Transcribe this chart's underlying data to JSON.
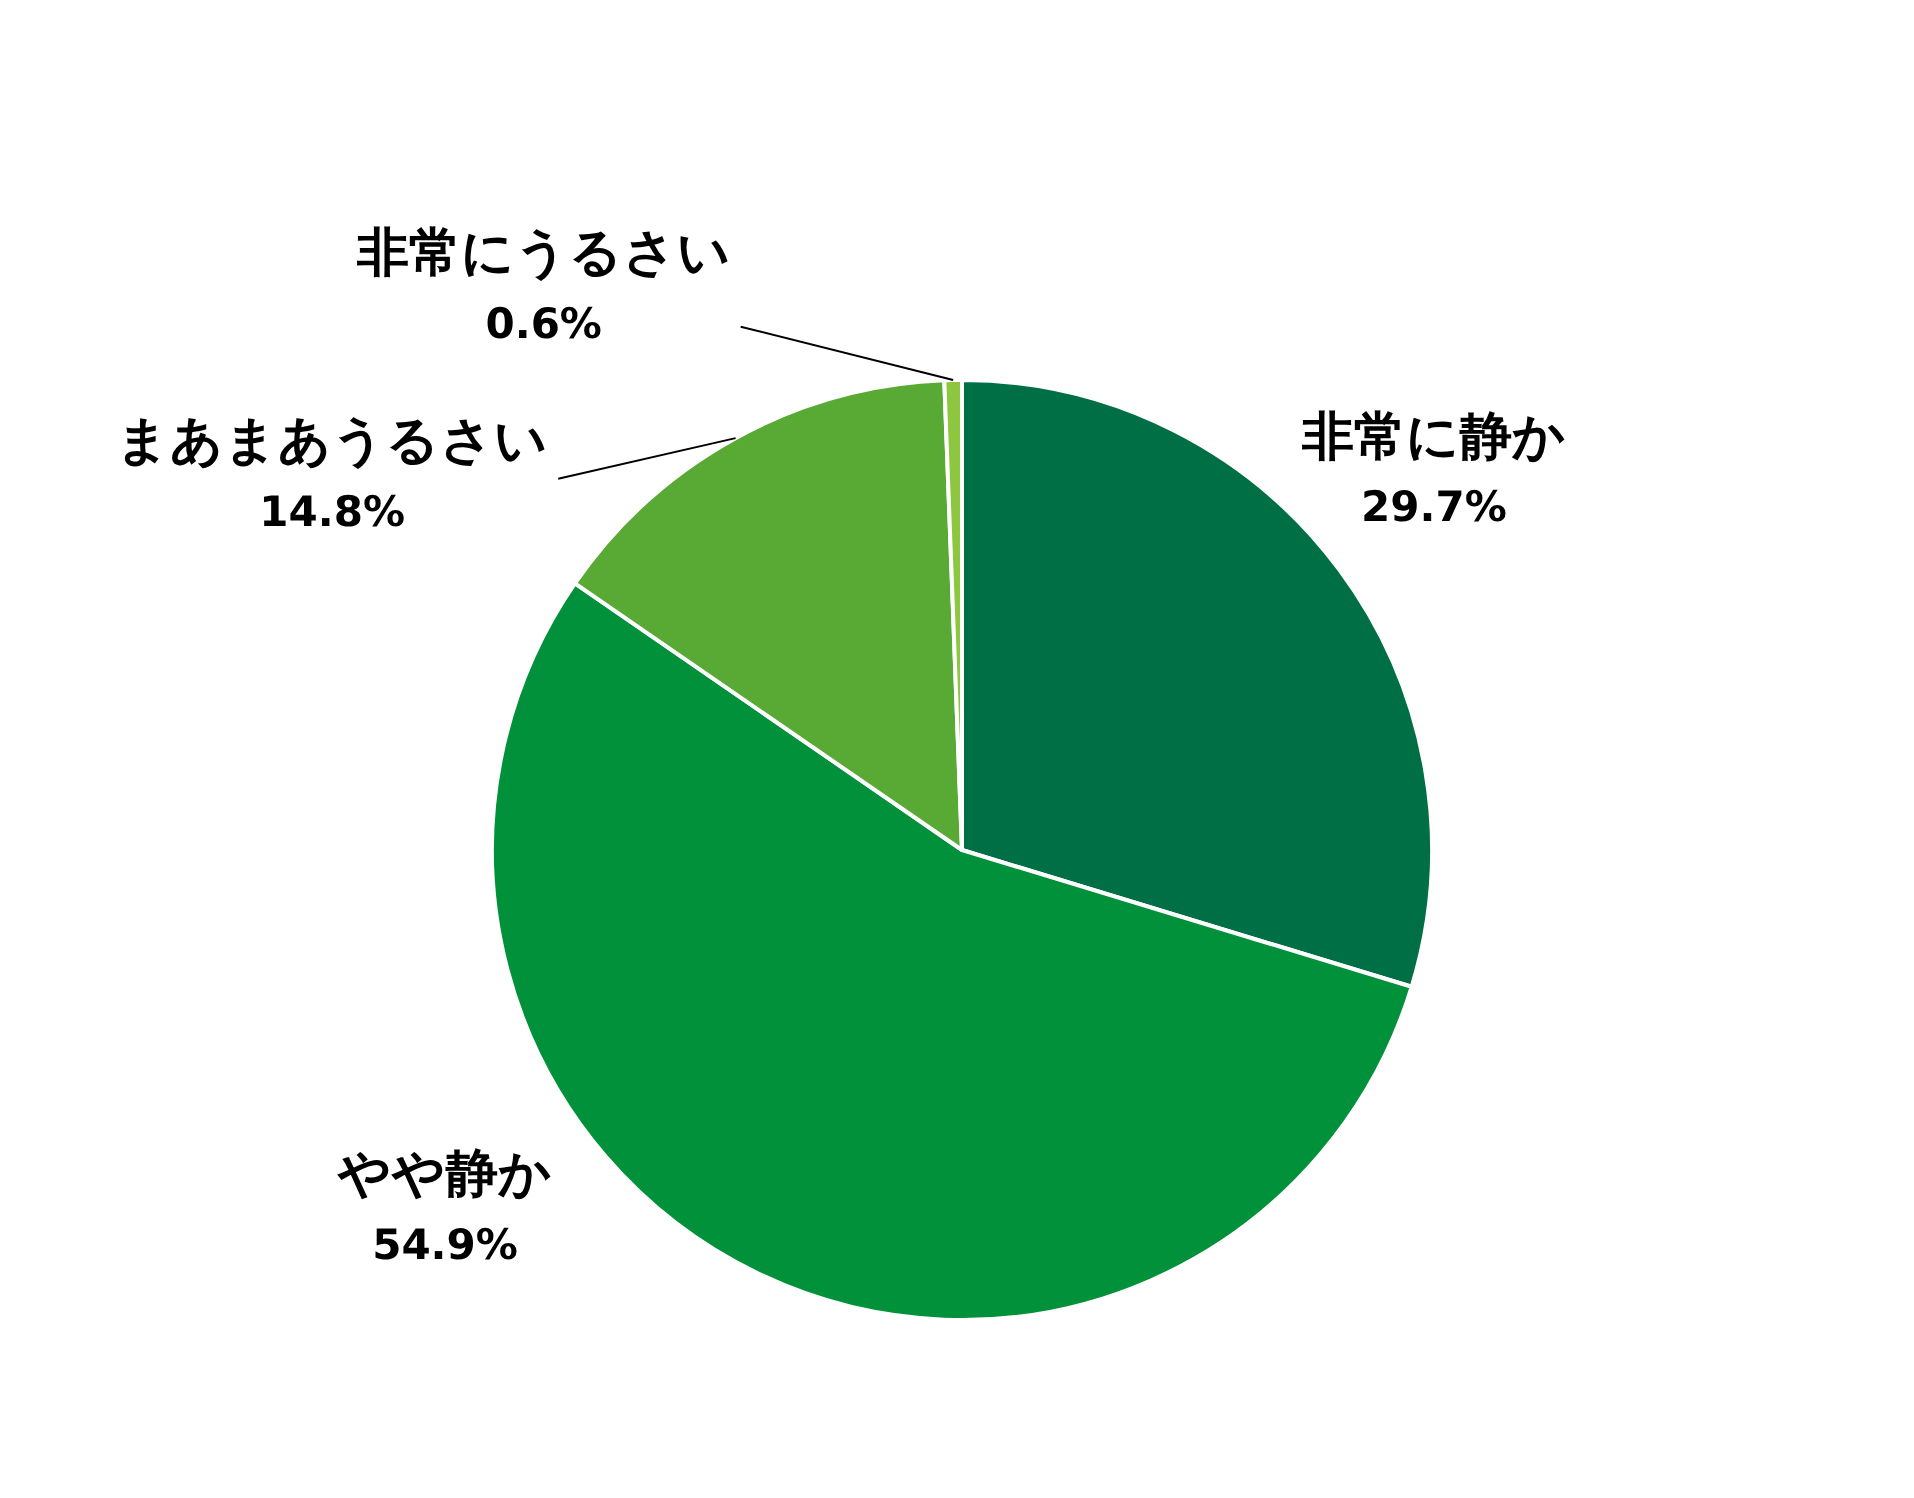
{
  "chart_data": {
    "type": "pie",
    "categories": [
      "非常に静か",
      "やや静か",
      "まあまあうるさい",
      "非常にうるさい"
    ],
    "values": [
      29.7,
      54.9,
      14.8,
      0.6
    ],
    "colors": [
      "#006f45",
      "#00913a",
      "#59aa35",
      "#8dc63f"
    ],
    "value_labels": [
      "29.7%",
      "54.9%",
      "14.8%",
      "0.6%"
    ]
  }
}
